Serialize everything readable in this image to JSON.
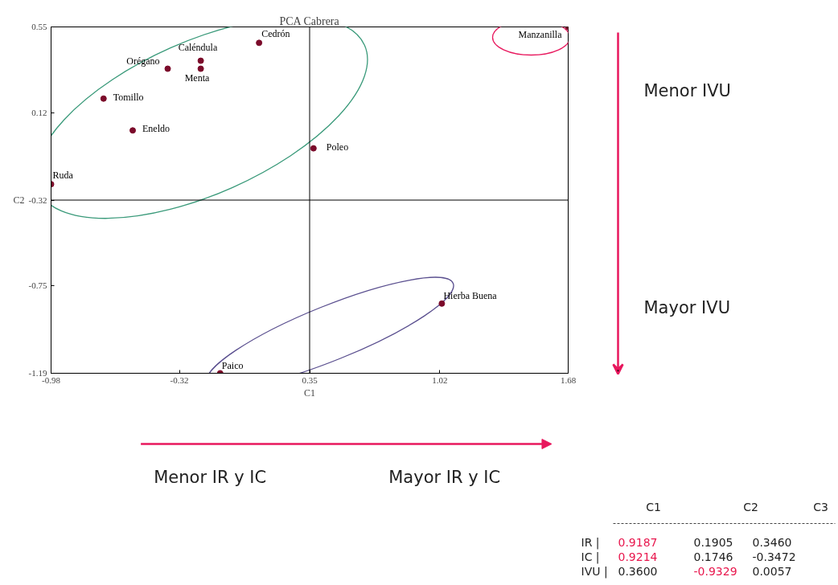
{
  "chart_data": {
    "type": "scatter",
    "title": "PCA Cabrera",
    "xlabel": "C1",
    "ylabel": "C2",
    "series": [
      {
        "color": "#7b0a2a",
        "x": [
          0.09,
          -0.21,
          -0.21,
          -0.38,
          -0.71,
          -0.56,
          0.37,
          -0.98
        ],
        "values": [
          0.47,
          0.38,
          0.34,
          0.34,
          0.19,
          0.03,
          -0.06,
          -0.24
        ]
      },
      {
        "color": "#7b0a2a",
        "x": [
          1.68
        ],
        "values": [
          0.55
        ]
      },
      {
        "color": "#7b0a2a",
        "x": [
          1.03,
          -0.11
        ],
        "values": [
          -0.84,
          -1.19
        ]
      }
    ],
    "marker": "circle",
    "xlim": [
      -0.98,
      1.68
    ],
    "ylim": [
      -1.19,
      0.55
    ],
    "xticks": [
      -0.98,
      -0.32,
      0.35,
      1.02,
      1.68
    ],
    "yticks": [
      -1.19,
      -0.75,
      -0.32,
      0.12,
      0.55
    ],
    "grid": false,
    "ref_lines": [
      {
        "axis": "x",
        "value": 0.35,
        "color": "#000000"
      },
      {
        "axis": "y",
        "value": -0.32,
        "color": "#000000"
      }
    ],
    "annotations": [
      {
        "text": "Cedrón",
        "x": 0.09,
        "y": 0.47
      },
      {
        "text": "Caléndula",
        "x": -0.21,
        "y": 0.38
      },
      {
        "text": "Menta",
        "x": -0.21,
        "y": 0.34
      },
      {
        "text": "Orégano",
        "x": -0.38,
        "y": 0.34
      },
      {
        "text": "Tomillo",
        "x": -0.71,
        "y": 0.19
      },
      {
        "text": "Eneldo",
        "x": -0.56,
        "y": 0.03
      },
      {
        "text": "Poleo",
        "x": 0.37,
        "y": -0.06
      },
      {
        "text": "Ruda",
        "x": -0.98,
        "y": -0.24
      },
      {
        "text": "Manzanilla",
        "x": 1.68,
        "y": 0.55
      },
      {
        "text": "Hierba Buena",
        "x": 1.03,
        "y": -0.84
      },
      {
        "text": "Paico",
        "x": -0.11,
        "y": -1.19
      },
      "Menor IVU",
      "Mayor IVU",
      "Menor IR y IC",
      "Mayor IR y IC",
      "C1",
      "C2",
      "C3",
      "IR  |",
      "0.9187",
      "0.1905",
      "0.3460",
      "IC   |",
      "0.9214",
      "0.1746",
      "-0.3472",
      "IVU |",
      "0.3600",
      "-0.9329",
      "0.0057"
    ]
  }
}
